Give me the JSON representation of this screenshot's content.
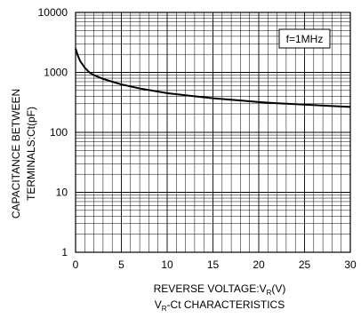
{
  "chart_data": {
    "type": "line",
    "title": "",
    "caption_main": "V",
    "caption_sub": "R",
    "caption_rest": "-Ct CHARACTERISTICS",
    "xlabel_main": "REVERSE VOLTAGE:V",
    "xlabel_sub": "R",
    "xlabel_rest": "(V)",
    "ylabel_line1": "CAPACITANCE BETWEEN",
    "ylabel_line2": "TERMINALS:Ct(pF)",
    "xlim": [
      0,
      30
    ],
    "ylim": [
      1,
      10000
    ],
    "y_scale": "log",
    "x_ticks": [
      "0",
      "5",
      "10",
      "15",
      "20",
      "25",
      "30"
    ],
    "y_ticks": [
      "1",
      "10",
      "100",
      "1000",
      "10000"
    ],
    "grid": true,
    "annotation": "f=1MHz",
    "series": [
      {
        "name": "",
        "x": [
          0,
          0.25,
          0.5,
          1,
          1.5,
          2,
          3,
          4,
          5,
          7,
          10,
          12,
          15,
          18,
          20,
          22,
          25,
          28,
          30
        ],
        "y": [
          2500,
          1900,
          1550,
          1200,
          1000,
          900,
          780,
          700,
          630,
          540,
          450,
          415,
          370,
          340,
          320,
          305,
          290,
          275,
          265
        ]
      }
    ]
  }
}
